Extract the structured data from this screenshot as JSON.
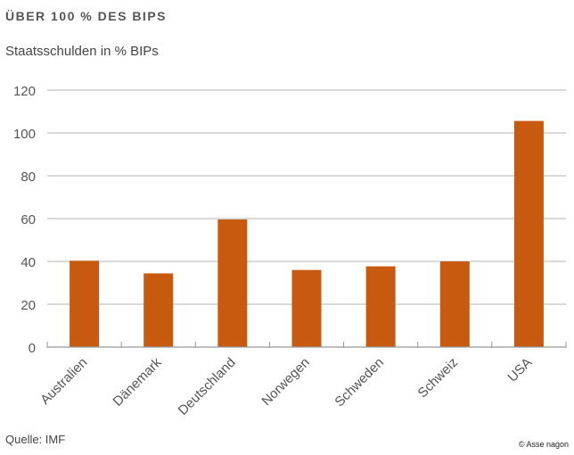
{
  "chart_data": {
    "type": "bar",
    "title": "ÜBER 100 % DES BIPS",
    "subtitle": "Staatsschulden in % BIPs",
    "categories": [
      "Australien",
      "Dänemark",
      "Deutschland",
      "Norwegen",
      "Schweden",
      "Schweiz",
      "USA"
    ],
    "values": [
      40.3,
      34.4,
      59.6,
      36.0,
      37.7,
      40.0,
      105.6
    ],
    "ylim": [
      0,
      120
    ],
    "yticks": [
      0,
      20,
      40,
      60,
      80,
      100,
      120
    ],
    "grid": true,
    "xlabel": "",
    "ylabel": "",
    "bar_color": "#c85a10",
    "source": "Quelle: IMF",
    "credit": "© Asse nagon"
  }
}
